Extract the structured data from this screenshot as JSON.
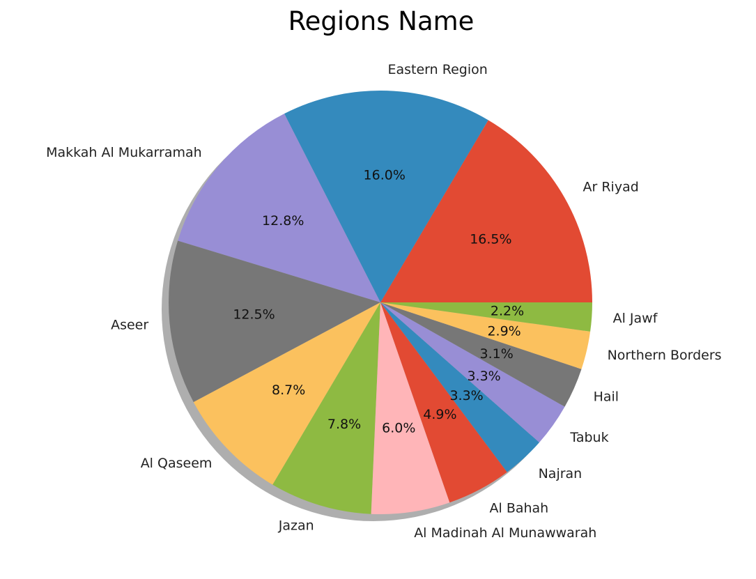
{
  "chart_data": {
    "type": "pie",
    "title": "Regions Name",
    "shadow": true,
    "start_angle_deg": 0,
    "direction": "counterclockwise",
    "slices": [
      {
        "label": "Ar Riyad",
        "value": 16.5,
        "pct_label": "16.5%",
        "color": "#e24a33"
      },
      {
        "label": "Eastern Region",
        "value": 16.0,
        "pct_label": "16.0%",
        "color": "#348abd"
      },
      {
        "label": "Makkah Al Mukarramah",
        "value": 12.8,
        "pct_label": "12.8%",
        "color": "#988ed5"
      },
      {
        "label": "Aseer",
        "value": 12.5,
        "pct_label": "12.5%",
        "color": "#777777"
      },
      {
        "label": "Al Qaseem",
        "value": 8.7,
        "pct_label": "8.7%",
        "color": "#fbc15e"
      },
      {
        "label": "Jazan",
        "value": 7.8,
        "pct_label": "7.8%",
        "color": "#8eba42"
      },
      {
        "label": "Al Madinah Al Munawwarah",
        "value": 6.0,
        "pct_label": "6.0%",
        "color": "#ffb5b8"
      },
      {
        "label": "Al Bahah",
        "value": 4.9,
        "pct_label": "4.9%",
        "color": "#e24a33"
      },
      {
        "label": "Najran",
        "value": 3.3,
        "pct_label": "3.3%",
        "color": "#348abd"
      },
      {
        "label": "Tabuk",
        "value": 3.3,
        "pct_label": "3.3%",
        "color": "#988ed5"
      },
      {
        "label": "Hail",
        "value": 3.1,
        "pct_label": "3.1%",
        "color": "#777777"
      },
      {
        "label": "Northern Borders",
        "value": 2.9,
        "pct_label": "2.9%",
        "color": "#fbc15e"
      },
      {
        "label": "Al Jawf",
        "value": 2.2,
        "pct_label": "2.2%",
        "color": "#8eba42"
      }
    ]
  }
}
